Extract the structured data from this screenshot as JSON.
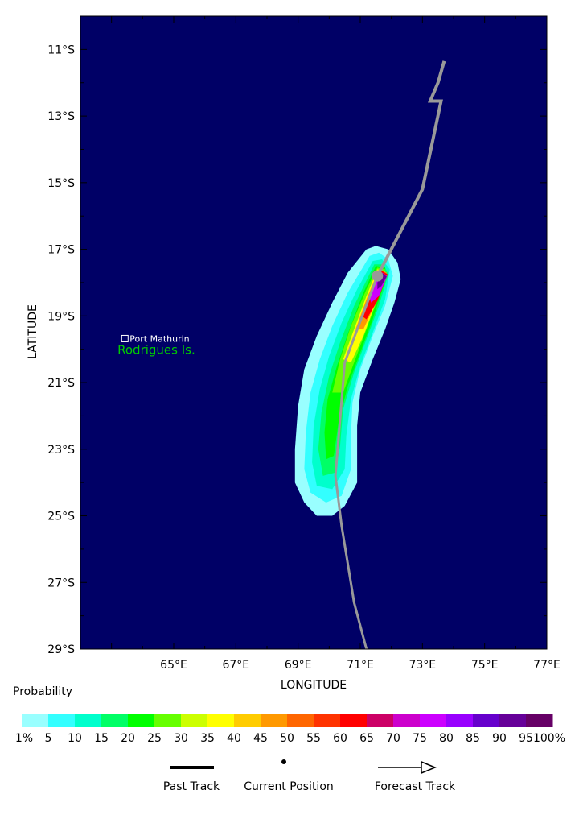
{
  "map": {
    "xlabel": "LONGITUDE",
    "ylabel": "LATITUDE",
    "lon_range": [
      62,
      77
    ],
    "lat_range": [
      -29,
      -10
    ],
    "lon_ticks": [
      "65°E",
      "67°E",
      "69°E",
      "71°E",
      "73°E",
      "75°E",
      "77°E"
    ],
    "lat_ticks": [
      "11°S",
      "13°S",
      "15°S",
      "17°S",
      "19°S",
      "21°S",
      "23°S",
      "25°S",
      "27°S",
      "29°S"
    ],
    "background_color": "#000066",
    "places": [
      {
        "name": "Port Mathurin",
        "lon": 63.43,
        "lat": -19.68
      },
      {
        "name": "Rodrigues Is.",
        "lon": 63.4,
        "lat": -20.0,
        "color": "#00cc00"
      }
    ],
    "track": {
      "color": "#999999",
      "points": [
        {
          "lon": 73.7,
          "lat": -11.35
        },
        {
          "lon": 73.5,
          "lat": -12.0
        },
        {
          "lon": 73.25,
          "lat": -12.55
        },
        {
          "lon": 73.6,
          "lat": -12.55
        },
        {
          "lon": 73.0,
          "lat": -15.2
        },
        {
          "lon": 71.55,
          "lat": -17.8
        },
        {
          "lon": 70.5,
          "lat": -20.4
        },
        {
          "lon": 70.2,
          "lat": -23.8
        },
        {
          "lon": 70.4,
          "lat": -25.3
        },
        {
          "lon": 70.8,
          "lat": -27.6
        },
        {
          "lon": 71.2,
          "lat": -29.0
        }
      ]
    },
    "current_position": {
      "lon": 71.55,
      "lat": -17.8
    }
  },
  "legend": {
    "title": "Probability",
    "bins": [
      {
        "label": "1%",
        "color": "#99ffff"
      },
      {
        "label": "5",
        "color": "#33ffff"
      },
      {
        "label": "10",
        "color": "#00ffcc"
      },
      {
        "label": "15",
        "color": "#00ff66"
      },
      {
        "label": "20",
        "color": "#00ff00"
      },
      {
        "label": "25",
        "color": "#66ff00"
      },
      {
        "label": "30",
        "color": "#ccff00"
      },
      {
        "label": "35",
        "color": "#ffff00"
      },
      {
        "label": "40",
        "color": "#ffcc00"
      },
      {
        "label": "45",
        "color": "#ff9900"
      },
      {
        "label": "50",
        "color": "#ff6600"
      },
      {
        "label": "55",
        "color": "#ff3300"
      },
      {
        "label": "60",
        "color": "#ff0000"
      },
      {
        "label": "65",
        "color": "#cc0066"
      },
      {
        "label": "70",
        "color": "#cc00cc"
      },
      {
        "label": "75",
        "color": "#cc00ff"
      },
      {
        "label": "80",
        "color": "#9900ff"
      },
      {
        "label": "85",
        "color": "#6600cc"
      },
      {
        "label": "90",
        "color": "#660099"
      },
      {
        "label": "95",
        "color": "#660066"
      },
      {
        "label": "100%",
        "color": null
      }
    ],
    "keys": {
      "past_track": "Past Track",
      "current_position": "Current Position",
      "forecast_track": "Forecast Track"
    }
  },
  "probability_regions": [
    {
      "bin": 0,
      "coords": [
        [
          71.2,
          -17.0
        ],
        [
          71.5,
          -16.9
        ],
        [
          71.9,
          -17.0
        ],
        [
          72.2,
          -17.4
        ],
        [
          72.3,
          -17.9
        ],
        [
          72.1,
          -18.6
        ],
        [
          71.8,
          -19.4
        ],
        [
          71.4,
          -20.3
        ],
        [
          71.0,
          -21.3
        ],
        [
          70.9,
          -22.3
        ],
        [
          70.9,
          -23.2
        ],
        [
          70.9,
          -24.0
        ],
        [
          70.5,
          -24.7
        ],
        [
          70.1,
          -25.0
        ],
        [
          69.6,
          -25.0
        ],
        [
          69.2,
          -24.6
        ],
        [
          68.9,
          -24.0
        ],
        [
          68.9,
          -23.0
        ],
        [
          69.0,
          -21.7
        ],
        [
          69.2,
          -20.6
        ],
        [
          69.6,
          -19.6
        ],
        [
          70.1,
          -18.6
        ],
        [
          70.6,
          -17.7
        ]
      ]
    },
    {
      "bin": 1,
      "coords": [
        [
          71.3,
          -17.2
        ],
        [
          71.6,
          -17.1
        ],
        [
          71.9,
          -17.3
        ],
        [
          72.05,
          -17.8
        ],
        [
          71.8,
          -18.7
        ],
        [
          71.4,
          -19.6
        ],
        [
          71.0,
          -20.6
        ],
        [
          70.75,
          -21.6
        ],
        [
          70.7,
          -22.6
        ],
        [
          70.7,
          -23.6
        ],
        [
          70.4,
          -24.4
        ],
        [
          69.9,
          -24.6
        ],
        [
          69.4,
          -24.3
        ],
        [
          69.2,
          -23.6
        ],
        [
          69.25,
          -22.5
        ],
        [
          69.4,
          -21.3
        ],
        [
          69.7,
          -20.3
        ],
        [
          70.1,
          -19.3
        ],
        [
          70.6,
          -18.3
        ]
      ]
    },
    {
      "bin": 2,
      "coords": [
        [
          71.4,
          -17.35
        ],
        [
          71.7,
          -17.3
        ],
        [
          71.95,
          -17.6
        ],
        [
          71.8,
          -18.5
        ],
        [
          71.4,
          -19.5
        ],
        [
          71.0,
          -20.5
        ],
        [
          70.7,
          -21.5
        ],
        [
          70.55,
          -22.6
        ],
        [
          70.5,
          -23.6
        ],
        [
          70.1,
          -24.2
        ],
        [
          69.6,
          -24.1
        ],
        [
          69.45,
          -23.4
        ],
        [
          69.5,
          -22.3
        ],
        [
          69.7,
          -21.2
        ],
        [
          70.0,
          -20.2
        ],
        [
          70.4,
          -19.2
        ],
        [
          70.9,
          -18.2
        ]
      ]
    },
    {
      "bin": 3,
      "coords": [
        [
          71.45,
          -17.45
        ],
        [
          71.75,
          -17.45
        ],
        [
          71.9,
          -17.75
        ],
        [
          71.6,
          -18.7
        ],
        [
          71.2,
          -19.7
        ],
        [
          70.8,
          -20.7
        ],
        [
          70.45,
          -21.8
        ],
        [
          70.35,
          -22.9
        ],
        [
          70.2,
          -23.7
        ],
        [
          69.8,
          -23.8
        ],
        [
          69.65,
          -23.0
        ],
        [
          69.75,
          -21.9
        ],
        [
          70.0,
          -20.8
        ],
        [
          70.35,
          -19.8
        ],
        [
          70.8,
          -18.7
        ]
      ]
    },
    {
      "bin": 4,
      "coords": [
        [
          71.5,
          -17.5
        ],
        [
          71.8,
          -17.55
        ],
        [
          71.75,
          -18.1
        ],
        [
          71.4,
          -19.1
        ],
        [
          71.0,
          -20.1
        ],
        [
          70.6,
          -21.1
        ],
        [
          70.3,
          -22.2
        ],
        [
          70.15,
          -23.2
        ],
        [
          69.9,
          -23.3
        ],
        [
          69.85,
          -22.5
        ],
        [
          69.95,
          -21.5
        ],
        [
          70.25,
          -20.5
        ],
        [
          70.65,
          -19.4
        ],
        [
          71.1,
          -18.3
        ]
      ]
    },
    {
      "bin": 5,
      "coords": [
        [
          71.55,
          -17.55
        ],
        [
          71.8,
          -17.6
        ],
        [
          71.6,
          -18.4
        ],
        [
          71.2,
          -19.4
        ],
        [
          70.8,
          -20.4
        ],
        [
          70.45,
          -21.3
        ],
        [
          70.1,
          -21.3
        ],
        [
          70.35,
          -20.3
        ],
        [
          70.7,
          -19.3
        ],
        [
          71.2,
          -18.2
        ]
      ]
    },
    {
      "bin": 7,
      "coords": [
        [
          71.55,
          -17.6
        ],
        [
          71.8,
          -17.65
        ],
        [
          71.5,
          -18.6
        ],
        [
          71.1,
          -19.6
        ],
        [
          70.7,
          -20.4
        ],
        [
          70.45,
          -20.3
        ],
        [
          70.8,
          -19.4
        ],
        [
          71.2,
          -18.4
        ]
      ]
    },
    {
      "bin": 9,
      "coords": [
        [
          71.6,
          -17.6
        ],
        [
          71.85,
          -17.7
        ],
        [
          71.5,
          -18.6
        ],
        [
          71.1,
          -19.4
        ],
        [
          70.85,
          -19.4
        ],
        [
          71.2,
          -18.5
        ]
      ]
    },
    {
      "bin": 12,
      "coords": [
        [
          71.65,
          -17.62
        ],
        [
          71.88,
          -17.75
        ],
        [
          71.55,
          -18.55
        ],
        [
          71.2,
          -19.1
        ],
        [
          71.05,
          -19.0
        ],
        [
          71.35,
          -18.3
        ]
      ]
    },
    {
      "bin": 15,
      "coords": [
        [
          71.7,
          -17.7
        ],
        [
          71.86,
          -17.8
        ],
        [
          71.6,
          -18.4
        ],
        [
          71.35,
          -18.6
        ],
        [
          71.3,
          -18.45
        ],
        [
          71.5,
          -18.0
        ]
      ]
    },
    {
      "bin": 18,
      "coords": [
        [
          71.72,
          -17.72
        ],
        [
          71.85,
          -17.82
        ],
        [
          71.68,
          -18.1
        ],
        [
          71.55,
          -18.2
        ],
        [
          71.55,
          -18.0
        ]
      ]
    }
  ]
}
